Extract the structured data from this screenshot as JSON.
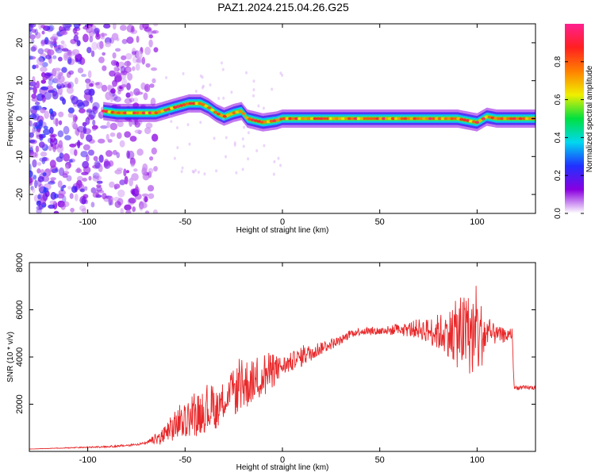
{
  "figure": {
    "title": "PAZ1.2024.215.04.26.G25"
  },
  "chart_data": [
    {
      "type": "heatmap",
      "title": "PAZ1.2024.215.04.26.G25",
      "xlabel": "Height of straight line (km)",
      "ylabel": "Frequency (Hz)",
      "xlim": [
        -130,
        130
      ],
      "ylim": [
        -25,
        25
      ],
      "x_ticks": [
        -100,
        -50,
        0,
        50,
        100
      ],
      "y_ticks": [
        -20,
        -10,
        0,
        10,
        20
      ],
      "colorbar": {
        "label": "Normalized spectral amplitude",
        "range": [
          0.0,
          1.0
        ],
        "ticks": [
          0.0,
          0.2,
          0.4,
          0.6,
          0.8
        ],
        "colors": [
          "#ffffff",
          "#8a00e0",
          "#2030ff",
          "#00d8f0",
          "#00e040",
          "#f0f000",
          "#ff8000",
          "#ff2020",
          "#ff2090"
        ]
      },
      "ridge": {
        "x": [
          -92,
          -85,
          -75,
          -65,
          -55,
          -48,
          -42,
          -38,
          -34,
          -30,
          -25,
          -21,
          -18,
          -10,
          -3,
          0,
          10,
          20,
          30,
          40,
          50,
          60,
          70,
          80,
          90,
          95,
          100,
          105,
          110,
          115,
          120,
          125,
          130
        ],
        "y": [
          2.0,
          1.5,
          1.5,
          1.5,
          3.0,
          4.0,
          4.0,
          3.0,
          1.5,
          0.5,
          1.5,
          2.0,
          0.0,
          -1.0,
          -0.5,
          0.0,
          0.0,
          0.0,
          0.0,
          0.0,
          0.0,
          0.0,
          0.0,
          0.0,
          0.0,
          -0.5,
          -1.0,
          0.5,
          0.0,
          0.0,
          0.0,
          0.0,
          0.0
        ]
      },
      "noise_region": {
        "x_range": [
          -130,
          -65
        ],
        "frequency_range": [
          -25,
          25
        ]
      }
    },
    {
      "type": "line",
      "title": "",
      "xlabel": "Height of straight line (km)",
      "ylabel": "SNR (10 * v/v)",
      "xlim": [
        -130,
        130
      ],
      "ylim": [
        0,
        8000
      ],
      "x_ticks": [
        -100,
        -50,
        0,
        50,
        100
      ],
      "y_ticks": [
        2000,
        4000,
        6000,
        8000
      ],
      "series": [
        {
          "color": "#e8282a",
          "x": [
            -130,
            -110,
            -90,
            -80,
            -70,
            -60,
            -55,
            -50,
            -45,
            -40,
            -35,
            -30,
            -25,
            -20,
            -15,
            -10,
            -5,
            0,
            5,
            10,
            20,
            30,
            35,
            40,
            50,
            60,
            70,
            75,
            80,
            85,
            90,
            95,
            100,
            105,
            110,
            115,
            118,
            119,
            125,
            130
          ],
          "y": [
            100,
            150,
            200,
            250,
            350,
            700,
            1100,
            1300,
            1500,
            1700,
            1900,
            2200,
            2500,
            2800,
            3000,
            3200,
            3400,
            3600,
            3800,
            4000,
            4400,
            4700,
            5000,
            5100,
            5100,
            5150,
            5200,
            5100,
            5050,
            5000,
            5000,
            5000,
            4900,
            4950,
            4950,
            4900,
            5000,
            2700,
            2700,
            2700
          ],
          "spread": [
            0,
            30,
            60,
            80,
            80,
            700,
            1200,
            1100,
            1500,
            1500,
            1800,
            1200,
            1600,
            2000,
            1500,
            1800,
            1200,
            700,
            700,
            700,
            500,
            300,
            300,
            300,
            300,
            400,
            700,
            900,
            1300,
            1600,
            2500,
            2800,
            3200,
            1200,
            600,
            500,
            400,
            150,
            150,
            150
          ]
        }
      ]
    }
  ]
}
